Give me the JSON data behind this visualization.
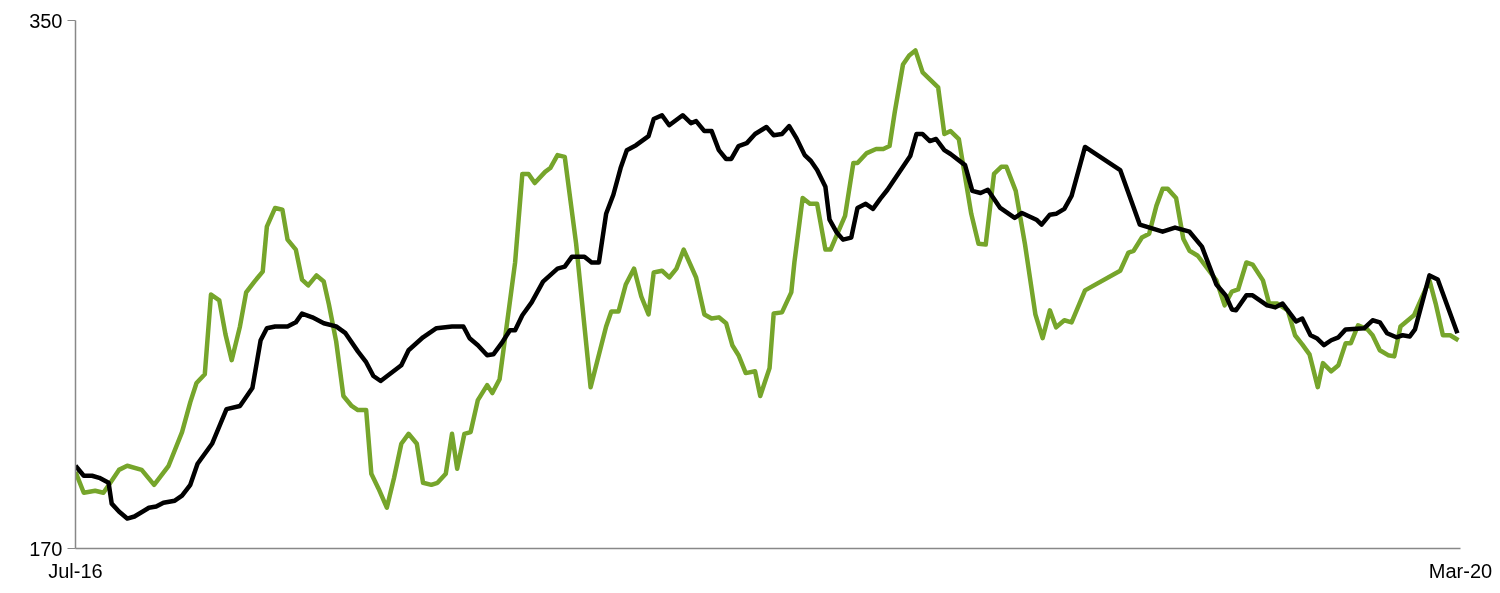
{
  "chart_data": {
    "type": "line",
    "xlim": [
      "2016-07",
      "2020-03"
    ],
    "ylim": [
      170,
      350
    ],
    "xticks": [
      {
        "value": "2016-07",
        "label": "Jul-16"
      },
      {
        "value": "2020-03",
        "label": "Mar-20"
      }
    ],
    "yticks": [
      170,
      350
    ],
    "line_style": "solid",
    "marker": "none",
    "series": [
      {
        "color": "#76a52b",
        "x": [
          "2016-07-01",
          "2016-07-09",
          "2016-07-20",
          "2016-07-28",
          "2016-08-05",
          "2016-08-12",
          "2016-08-20",
          "2016-09-03",
          "2016-09-15",
          "2016-09-29",
          "2016-10-12",
          "2016-10-20",
          "2016-10-26",
          "2016-11-03",
          "2016-11-09",
          "2016-11-17",
          "2016-11-23",
          "2016-11-29",
          "2016-12-07",
          "2016-12-13",
          "2016-12-21",
          "2016-12-29",
          "2017-01-02",
          "2017-01-10",
          "2017-01-17",
          "2017-01-22",
          "2017-01-30",
          "2017-02-05",
          "2017-02-11",
          "2017-02-19",
          "2017-02-26",
          "2017-03-03",
          "2017-03-10",
          "2017-03-17",
          "2017-03-25",
          "2017-03-31",
          "2017-04-08",
          "2017-04-13",
          "2017-04-20",
          "2017-04-28",
          "2017-05-05",
          "2017-05-12",
          "2017-05-19",
          "2017-05-27",
          "2017-06-02",
          "2017-06-10",
          "2017-06-16",
          "2017-06-24",
          "2017-06-30",
          "2017-07-05",
          "2017-07-12",
          "2017-07-18",
          "2017-07-25",
          "2017-08-03",
          "2017-08-08",
          "2017-08-15",
          "2017-08-30",
          "2017-09-06",
          "2017-09-12",
          "2017-09-18",
          "2017-09-28",
          "2017-10-03",
          "2017-10-10",
          "2017-10-17",
          "2017-10-28",
          "2017-11-11",
          "2017-11-26",
          "2017-12-01",
          "2017-12-08",
          "2017-12-15",
          "2017-12-23",
          "2017-12-30",
          "2018-01-06",
          "2018-01-11",
          "2018-01-19",
          "2018-01-26",
          "2018-02-02",
          "2018-02-09",
          "2018-02-21",
          "2018-03-01",
          "2018-03-08",
          "2018-03-15",
          "2018-03-22",
          "2018-03-28",
          "2018-04-03",
          "2018-04-10",
          "2018-04-19",
          "2018-04-24",
          "2018-05-03",
          "2018-05-07",
          "2018-05-15",
          "2018-05-24",
          "2018-05-27",
          "2018-06-04",
          "2018-06-11",
          "2018-06-18",
          "2018-06-26",
          "2018-07-01",
          "2018-07-08",
          "2018-07-15",
          "2018-07-23",
          "2018-07-27",
          "2018-08-05",
          "2018-08-14",
          "2018-08-21",
          "2018-08-27",
          "2018-09-01",
          "2018-09-09",
          "2018-09-15",
          "2018-09-21",
          "2018-09-28",
          "2018-10-13",
          "2018-10-19",
          "2018-10-25",
          "2018-11-02",
          "2018-11-14",
          "2018-11-21",
          "2018-11-28",
          "2018-12-06",
          "2018-12-13",
          "2018-12-18",
          "2018-12-27",
          "2019-01-05",
          "2019-01-15",
          "2019-01-22",
          "2019-01-29",
          "2019-02-04",
          "2019-02-12",
          "2019-02-19",
          "2019-03-04",
          "2019-04-07",
          "2019-04-15",
          "2019-04-20",
          "2019-04-28",
          "2019-05-05",
          "2019-05-12",
          "2019-05-18",
          "2019-05-23",
          "2019-05-31",
          "2019-06-07",
          "2019-06-13",
          "2019-06-21",
          "2019-07-09",
          "2019-07-17",
          "2019-07-24",
          "2019-07-30",
          "2019-08-07",
          "2019-08-13",
          "2019-08-23",
          "2019-08-29",
          "2019-09-06",
          "2019-09-16",
          "2019-09-23",
          "2019-09-30",
          "2019-10-07",
          "2019-10-15",
          "2019-10-20",
          "2019-10-28",
          "2019-11-04",
          "2019-11-11",
          "2019-11-16",
          "2019-11-23",
          "2019-12-02",
          "2019-12-07",
          "2019-12-14",
          "2019-12-22",
          "2019-12-28",
          "2020-01-03",
          "2020-01-16",
          "2020-01-31",
          "2020-02-06",
          "2020-02-13",
          "2020-02-20",
          "2020-02-28"
        ],
        "values": [
          196.1,
          189.0,
          189.7,
          189.0,
          193.1,
          196.8,
          198.2,
          196.8,
          191.7,
          198.2,
          209.7,
          219.9,
          226.4,
          229.4,
          256.6,
          254.6,
          243.0,
          234.2,
          245.7,
          257.3,
          261.0,
          264.4,
          279.7,
          286.1,
          285.5,
          275.3,
          271.9,
          261.7,
          259.7,
          263.1,
          261.0,
          253.2,
          240.6,
          222.0,
          218.6,
          217.2,
          217.2,
          195.5,
          190.4,
          183.9,
          194.1,
          205.7,
          209.1,
          205.7,
          192.4,
          191.7,
          192.4,
          195.5,
          209.1,
          197.2,
          209.1,
          209.7,
          220.6,
          225.7,
          223.0,
          227.7,
          267.5,
          297.7,
          297.7,
          294.6,
          298.4,
          299.7,
          304.1,
          303.5,
          273.9,
          225.0,
          245.7,
          250.8,
          250.8,
          260.0,
          265.4,
          255.9,
          249.8,
          264.1,
          264.7,
          262.4,
          265.4,
          271.9,
          262.4,
          249.8,
          248.4,
          248.8,
          246.8,
          239.3,
          235.9,
          229.8,
          230.4,
          222.0,
          231.5,
          250.1,
          250.5,
          257.3,
          267.5,
          289.5,
          287.5,
          287.5,
          271.9,
          271.9,
          277.7,
          283.4,
          301.4,
          301.4,
          304.8,
          306.2,
          306.2,
          307.2,
          318.7,
          335.0,
          338.1,
          339.8,
          332.3,
          327.2,
          311.3,
          312.3,
          309.6,
          284.1,
          273.9,
          273.6,
          297.7,
          300.1,
          300.1,
          291.9,
          273.6,
          249.8,
          241.7,
          251.2,
          245.4,
          247.8,
          247.1,
          258.0,
          264.7,
          270.9,
          271.5,
          276.0,
          277.3,
          286.8,
          292.6,
          292.6,
          289.5,
          275.6,
          271.5,
          269.8,
          261.4,
          252.9,
          257.6,
          258.3,
          267.5,
          266.8,
          261.4,
          253.5,
          253.5,
          251.2,
          242.7,
          239.6,
          236.2,
          225.0,
          233.2,
          230.4,
          232.5,
          240.0,
          240.0,
          246.1,
          244.7,
          242.7,
          237.6,
          235.9,
          235.5,
          245.7,
          249.5,
          261.4,
          253.5,
          242.7,
          242.7,
          241.0
        ]
      },
      {
        "color": "#000000",
        "x": [
          "2016-07-01",
          "2016-07-09",
          "2016-07-17",
          "2016-07-24",
          "2016-08-02",
          "2016-08-05",
          "2016-08-12",
          "2016-08-20",
          "2016-08-27",
          "2016-09-10",
          "2016-09-17",
          "2016-09-24",
          "2016-10-05",
          "2016-10-12",
          "2016-10-20",
          "2016-10-27",
          "2016-11-10",
          "2016-11-24",
          "2016-12-07",
          "2016-12-19",
          "2016-12-27",
          "2017-01-02",
          "2017-01-10",
          "2017-01-22",
          "2017-01-30",
          "2017-02-05",
          "2017-02-15",
          "2017-02-26",
          "2017-03-10",
          "2017-03-19",
          "2017-03-31",
          "2017-04-08",
          "2017-04-15",
          "2017-04-22",
          "2017-05-12",
          "2017-05-19",
          "2017-06-02",
          "2017-06-15",
          "2017-06-30",
          "2017-07-11",
          "2017-07-17",
          "2017-07-25",
          "2017-08-03",
          "2017-08-09",
          "2017-08-17",
          "2017-08-25",
          "2017-08-30",
          "2017-09-06",
          "2017-09-15",
          "2017-09-26",
          "2017-10-10",
          "2017-10-17",
          "2017-10-24",
          "2017-11-05",
          "2017-11-12",
          "2017-11-19",
          "2017-11-26",
          "2017-12-03",
          "2017-12-10",
          "2017-12-16",
          "2017-12-25",
          "2018-01-06",
          "2018-01-11",
          "2018-01-19",
          "2018-01-26",
          "2018-02-08",
          "2018-02-16",
          "2018-02-21",
          "2018-03-01",
          "2018-03-08",
          "2018-03-15",
          "2018-03-22",
          "2018-03-27",
          "2018-04-03",
          "2018-04-11",
          "2018-04-19",
          "2018-04-30",
          "2018-05-07",
          "2018-05-15",
          "2018-05-22",
          "2018-05-29",
          "2018-06-06",
          "2018-06-12",
          "2018-06-18",
          "2018-06-26",
          "2018-06-30",
          "2018-07-07",
          "2018-07-13",
          "2018-07-21",
          "2018-07-27",
          "2018-08-04",
          "2018-08-11",
          "2018-08-18",
          "2018-08-25",
          "2018-09-16",
          "2018-09-22",
          "2018-09-28",
          "2018-10-05",
          "2018-10-11",
          "2018-10-19",
          "2018-10-25",
          "2018-11-08",
          "2018-11-15",
          "2018-11-23",
          "2018-11-30",
          "2018-12-12",
          "2018-12-26",
          "2019-01-02",
          "2019-01-16",
          "2019-01-21",
          "2019-01-29",
          "2019-02-04",
          "2019-02-12",
          "2019-02-19",
          "2019-03-04",
          "2019-04-07",
          "2019-04-26",
          "2019-05-18",
          "2019-05-30",
          "2019-06-13",
          "2019-06-25",
          "2019-07-09",
          "2019-07-18",
          "2019-07-24",
          "2019-07-28",
          "2019-08-07",
          "2019-08-13",
          "2019-08-27",
          "2019-09-04",
          "2019-09-11",
          "2019-09-24",
          "2019-09-30",
          "2019-10-08",
          "2019-10-14",
          "2019-10-21",
          "2019-10-28",
          "2019-11-04",
          "2019-11-11",
          "2019-11-29",
          "2019-12-07",
          "2019-12-14",
          "2019-12-21",
          "2019-12-30",
          "2020-01-05",
          "2020-01-12",
          "2020-01-17",
          "2020-01-31",
          "2020-02-08",
          "2020-02-27"
        ],
        "values": [
          198.2,
          194.8,
          194.8,
          194.1,
          192.4,
          185.3,
          182.6,
          180.2,
          180.9,
          183.9,
          184.3,
          185.6,
          186.3,
          188.0,
          191.7,
          198.9,
          205.7,
          217.5,
          218.6,
          224.7,
          241.0,
          245.1,
          245.7,
          245.7,
          247.1,
          250.1,
          248.8,
          246.8,
          245.7,
          243.4,
          237.2,
          233.5,
          228.8,
          227.1,
          232.5,
          237.6,
          242.0,
          245.1,
          245.7,
          245.7,
          241.7,
          239.3,
          235.9,
          236.2,
          240.0,
          244.4,
          244.4,
          249.5,
          253.9,
          261.0,
          265.4,
          266.1,
          269.5,
          269.5,
          267.5,
          267.5,
          284.1,
          290.6,
          299.7,
          305.8,
          307.5,
          310.6,
          316.4,
          317.7,
          314.3,
          317.7,
          315.0,
          315.7,
          312.3,
          312.3,
          305.8,
          302.8,
          302.8,
          307.2,
          308.2,
          311.3,
          313.7,
          310.9,
          311.3,
          314.0,
          309.9,
          304.1,
          302.1,
          299.0,
          293.3,
          282.1,
          277.7,
          275.3,
          276.0,
          286.1,
          287.5,
          285.8,
          289.2,
          292.3,
          303.8,
          311.3,
          311.3,
          308.9,
          309.6,
          305.8,
          304.5,
          300.7,
          291.9,
          291.2,
          292.3,
          286.1,
          282.7,
          284.4,
          282.1,
          280.4,
          283.8,
          284.1,
          285.8,
          290.2,
          306.9,
          299.0,
          280.4,
          278.0,
          279.4,
          278.0,
          272.9,
          260.0,
          256.3,
          251.5,
          251.2,
          256.3,
          256.3,
          252.9,
          252.2,
          253.5,
          247.4,
          248.4,
          242.7,
          241.7,
          239.3,
          241.0,
          242.0,
          244.7,
          245.1,
          247.8,
          247.1,
          243.4,
          242.0,
          242.7,
          242.3,
          244.7,
          263.1,
          261.7,
          243.4
        ]
      }
    ]
  }
}
